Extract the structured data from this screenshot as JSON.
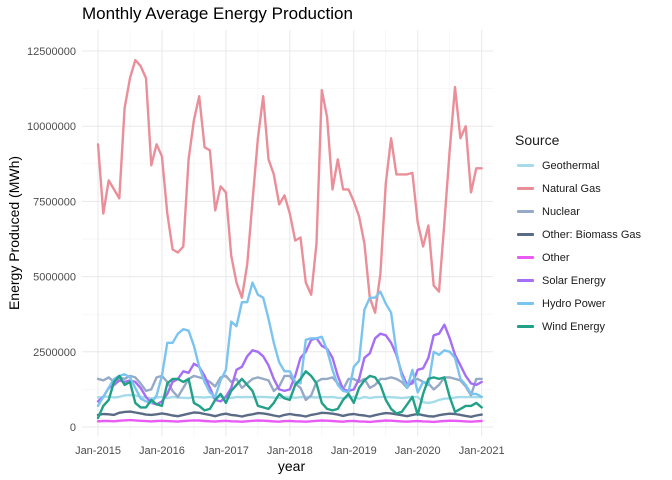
{
  "chart_data": {
    "type": "line",
    "title": "Monthly Average Energy Production",
    "xlabel": "year",
    "ylabel": "Energy Produced (MWh)",
    "xlim": [
      "2015-01",
      "2021-02"
    ],
    "ylim": [
      -300000,
      13200000
    ],
    "x_ticks": [
      "Jan-2015",
      "Jan-2016",
      "Jan-2017",
      "Jan-2018",
      "Jan-2019",
      "Jan-2020",
      "Jan-2021"
    ],
    "y_ticks": [
      0,
      2500000,
      5000000,
      7500000,
      10000000,
      12500000
    ],
    "y_tick_labels": [
      "0",
      "2500000",
      "5000000",
      "7500000",
      "10000000",
      "12500000"
    ],
    "grid": true,
    "legend_title": "Source",
    "legend_position": "right",
    "x": [
      "2015-01",
      "2015-02",
      "2015-03",
      "2015-04",
      "2015-05",
      "2015-06",
      "2015-07",
      "2015-08",
      "2015-09",
      "2015-10",
      "2015-11",
      "2015-12",
      "2016-01",
      "2016-02",
      "2016-03",
      "2016-04",
      "2016-05",
      "2016-06",
      "2016-07",
      "2016-08",
      "2016-09",
      "2016-10",
      "2016-11",
      "2016-12",
      "2017-01",
      "2017-02",
      "2017-03",
      "2017-04",
      "2017-05",
      "2017-06",
      "2017-07",
      "2017-08",
      "2017-09",
      "2017-10",
      "2017-11",
      "2017-12",
      "2018-01",
      "2018-02",
      "2018-03",
      "2018-04",
      "2018-05",
      "2018-06",
      "2018-07",
      "2018-08",
      "2018-09",
      "2018-10",
      "2018-11",
      "2018-12",
      "2019-01",
      "2019-02",
      "2019-03",
      "2019-04",
      "2019-05",
      "2019-06",
      "2019-07",
      "2019-08",
      "2019-09",
      "2019-10",
      "2019-11",
      "2019-12",
      "2020-01",
      "2020-02",
      "2020-03",
      "2020-04",
      "2020-05",
      "2020-06",
      "2020-07",
      "2020-08",
      "2020-09",
      "2020-10",
      "2020-11",
      "2020-12",
      "2021-01"
    ],
    "series": [
      {
        "name": "Geothermal",
        "color": "#a6dce9",
        "values": [
          980000,
          1000000,
          1010000,
          980000,
          1000000,
          1050000,
          1060000,
          1050000,
          1000000,
          980000,
          950000,
          980000,
          1000000,
          960000,
          1000000,
          980000,
          970000,
          960000,
          1000000,
          990000,
          980000,
          1000000,
          970000,
          1010000,
          1000000,
          960000,
          1000000,
          990000,
          1000000,
          990000,
          1000000,
          1000000,
          990000,
          980000,
          960000,
          1000000,
          1000000,
          970000,
          990000,
          1000000,
          990000,
          980000,
          1000000,
          990000,
          1000000,
          970000,
          960000,
          990000,
          1000000,
          940000,
          1000000,
          960000,
          990000,
          1000000,
          1000000,
          990000,
          980000,
          960000,
          980000,
          1000000,
          1000000,
          820000,
          800000,
          830000,
          900000,
          940000,
          950000,
          980000,
          1000000,
          990000,
          1000000,
          990000,
          990000
        ]
      },
      {
        "name": "Natural Gas",
        "color": "#ea8f99",
        "values": [
          9400000,
          7100000,
          8200000,
          7900000,
          7600000,
          10600000,
          11600000,
          12200000,
          12000000,
          11600000,
          8700000,
          9400000,
          9000000,
          7100000,
          5900000,
          5800000,
          6000000,
          8900000,
          10200000,
          11000000,
          9300000,
          9200000,
          7200000,
          8000000,
          7800000,
          5700000,
          4800000,
          4300000,
          5400000,
          7500000,
          9600000,
          11000000,
          8900000,
          8400000,
          7400000,
          7700000,
          7100000,
          6200000,
          6300000,
          4800000,
          4400000,
          6100000,
          11200000,
          10300000,
          7900000,
          8900000,
          7900000,
          7900000,
          7500000,
          7000000,
          6100000,
          4300000,
          3800000,
          5100000,
          8100000,
          9600000,
          8400000,
          8400000,
          8400000,
          8450000,
          6800000,
          6000000,
          6700000,
          4700000,
          4500000,
          6800000,
          9200000,
          11300000,
          9600000,
          10000000,
          7800000,
          8600000,
          8600000
        ]
      },
      {
        "name": "Nuclear",
        "color": "#96a9c6",
        "values": [
          1600000,
          1550000,
          1650000,
          1500000,
          1650000,
          1600000,
          1700000,
          1650000,
          1450000,
          1200000,
          1250000,
          1650000,
          1700000,
          1500000,
          1200000,
          1000000,
          1300000,
          1600000,
          1700000,
          1650000,
          1600000,
          1500000,
          1350000,
          1650000,
          1700000,
          1500000,
          1600000,
          1300000,
          1450000,
          1600000,
          1650000,
          1600000,
          1550000,
          1200000,
          1350000,
          1700000,
          1700000,
          1450000,
          1300000,
          900000,
          1050000,
          1500000,
          1600000,
          1600000,
          1650000,
          1450000,
          1250000,
          1600000,
          1600000,
          1500000,
          1600000,
          1300000,
          1400000,
          1600000,
          1600000,
          1650000,
          1600000,
          1500000,
          1300000,
          1550000,
          1600000,
          1500000,
          1450000,
          1250000,
          1400000,
          1650000,
          1650000,
          1600000,
          1550000,
          1350000,
          1050000,
          1600000,
          1600000
        ]
      },
      {
        "name": "Other: Biomass Gas",
        "color": "#5b6b86",
        "values": [
          400000,
          430000,
          420000,
          400000,
          470000,
          500000,
          510000,
          480000,
          450000,
          410000,
          400000,
          420000,
          450000,
          420000,
          380000,
          360000,
          400000,
          440000,
          480000,
          470000,
          430000,
          400000,
          360000,
          410000,
          440000,
          400000,
          380000,
          350000,
          390000,
          420000,
          460000,
          450000,
          420000,
          380000,
          350000,
          400000,
          430000,
          400000,
          380000,
          350000,
          400000,
          430000,
          470000,
          460000,
          440000,
          410000,
          370000,
          410000,
          430000,
          400000,
          380000,
          350000,
          390000,
          430000,
          460000,
          450000,
          420000,
          390000,
          360000,
          400000,
          430000,
          390000,
          360000,
          350000,
          390000,
          420000,
          440000,
          430000,
          400000,
          370000,
          340000,
          380000,
          410000
        ]
      },
      {
        "name": "Other",
        "color": "#e85bf5",
        "values": [
          190000,
          200000,
          195000,
          190000,
          210000,
          220000,
          230000,
          220000,
          205000,
          195000,
          185000,
          200000,
          205000,
          195000,
          190000,
          180000,
          195000,
          210000,
          220000,
          215000,
          200000,
          190000,
          180000,
          195000,
          205000,
          190000,
          185000,
          175000,
          190000,
          205000,
          215000,
          210000,
          200000,
          185000,
          175000,
          195000,
          200000,
          190000,
          185000,
          175000,
          190000,
          205000,
          215000,
          210000,
          200000,
          185000,
          175000,
          195000,
          200000,
          185000,
          180000,
          170000,
          185000,
          200000,
          215000,
          210000,
          195000,
          185000,
          175000,
          190000,
          200000,
          185000,
          180000,
          170000,
          185000,
          200000,
          210000,
          205000,
          195000,
          185000,
          175000,
          190000,
          200000
        ]
      },
      {
        "name": "Solar Energy",
        "color": "#a56ef5",
        "values": [
          850000,
          1000000,
          1300000,
          1400000,
          1550000,
          1500000,
          1550000,
          1500000,
          1300000,
          1000000,
          800000,
          750000,
          850000,
          1100000,
          1500000,
          1600000,
          1850000,
          1800000,
          2100000,
          2000000,
          1700000,
          1300000,
          900000,
          850000,
          1000000,
          1300000,
          1900000,
          2000000,
          2350000,
          2550000,
          2500000,
          2350000,
          2050000,
          1600000,
          1250000,
          1200000,
          1250000,
          1700000,
          2300000,
          2500000,
          2900000,
          2950000,
          2700000,
          2600000,
          2300000,
          1700000,
          1250000,
          1200000,
          1250000,
          1600000,
          2300000,
          2450000,
          2950000,
          3100000,
          3050000,
          2800000,
          2400000,
          1800000,
          1400000,
          1450000,
          1900000,
          1950000,
          2300000,
          3050000,
          3100000,
          3400000,
          2950000,
          2400000,
          2050000,
          1700000,
          1450000,
          1400000,
          1500000
        ]
      },
      {
        "name": "Hydro Power",
        "color": "#7cc4f0",
        "values": [
          700000,
          1000000,
          1300000,
          1600000,
          1700000,
          1750000,
          1650000,
          1300000,
          950000,
          850000,
          800000,
          1050000,
          1700000,
          2800000,
          2800000,
          3100000,
          3250000,
          3200000,
          2700000,
          2000000,
          1500000,
          1150000,
          1000000,
          1550000,
          1900000,
          3500000,
          3350000,
          4150000,
          4150000,
          4800000,
          4400000,
          4300000,
          3600000,
          2800000,
          2150000,
          1850000,
          1850000,
          1500000,
          1450000,
          2900000,
          2950000,
          2950000,
          3000000,
          2550000,
          1900000,
          1400000,
          1200000,
          1150000,
          2000000,
          2200000,
          3900000,
          4300000,
          4300000,
          4500000,
          4100000,
          3800000,
          2500000,
          1700000,
          1300000,
          1900000,
          1150000,
          1500000,
          1400000,
          2500000,
          2400000,
          2550000,
          2500000,
          2300000,
          1600000,
          1400000,
          1100000,
          1100000,
          1000000
        ]
      },
      {
        "name": "Wind Energy",
        "color": "#21a187",
        "values": [
          300000,
          700000,
          900000,
          1500000,
          1700000,
          1400000,
          1500000,
          800000,
          650000,
          650000,
          900000,
          750000,
          700000,
          1450000,
          1600000,
          1600000,
          1500000,
          1600000,
          800000,
          700000,
          550000,
          600000,
          900000,
          1100000,
          800000,
          1200000,
          1400000,
          1600000,
          1400000,
          1200000,
          700000,
          650000,
          600000,
          800000,
          1100000,
          950000,
          900000,
          1400000,
          1600000,
          1850000,
          1700000,
          1450000,
          800000,
          600000,
          550000,
          600000,
          900000,
          1100000,
          800000,
          1300000,
          1550000,
          1700000,
          1650000,
          1400000,
          900000,
          600000,
          450000,
          500000,
          750000,
          1000000,
          400000,
          1100000,
          1600000,
          1650000,
          1600000,
          1650000,
          1000000,
          500000,
          600000,
          700000,
          700000,
          800000,
          650000
        ]
      }
    ]
  }
}
